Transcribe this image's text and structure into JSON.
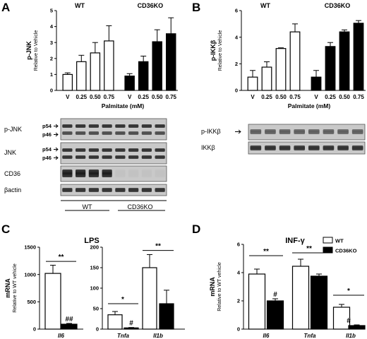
{
  "panels": {
    "A": {
      "letter": "A"
    },
    "B": {
      "letter": "B"
    },
    "C": {
      "letter": "C"
    },
    "D": {
      "letter": "D"
    }
  },
  "chart_data": [
    {
      "id": "A",
      "type": "bar",
      "groups": [
        "WT",
        "CD36KO"
      ],
      "categories": [
        "V",
        "0.25",
        "0.50",
        "0.75",
        "V",
        "0.25",
        "0.50",
        "0.75"
      ],
      "fill": [
        "white",
        "white",
        "white",
        "white",
        "black",
        "black",
        "black",
        "black"
      ],
      "values": [
        1.0,
        1.8,
        2.35,
        3.1,
        0.9,
        1.8,
        3.05,
        3.55
      ],
      "errors": [
        0.1,
        0.4,
        0.65,
        0.95,
        0.15,
        0.35,
        0.75,
        1.0
      ],
      "ylabel": "p-JNK",
      "ylabel_sub": "Relative to Vehicle",
      "xlabel": "Palmitate (mM)",
      "ylim": [
        0,
        5
      ],
      "yticks": [
        "0",
        "1",
        "2",
        "3",
        "4",
        "5"
      ]
    },
    {
      "id": "B",
      "type": "bar",
      "groups": [
        "WT",
        "CD36KO"
      ],
      "categories": [
        "V",
        "0.25",
        "0.50",
        "0.75",
        "V",
        "0.25",
        "0.50",
        "0.75"
      ],
      "fill": [
        "white",
        "white",
        "white",
        "white",
        "black",
        "black",
        "black",
        "black"
      ],
      "values": [
        1.0,
        1.75,
        3.15,
        4.4,
        1.0,
        3.3,
        4.4,
        5.05
      ],
      "errors": [
        0.5,
        0.4,
        0.05,
        0.6,
        0.5,
        0.3,
        0.15,
        0.2
      ],
      "ylabel": "p-IKKβ",
      "ylabel_sub": "Relative to Vehicle",
      "xlabel": "Palmitate (mM)",
      "ylim": [
        0,
        6
      ],
      "yticks": [
        "0",
        "2",
        "4",
        "6"
      ]
    },
    {
      "id": "C1",
      "type": "bar",
      "title": "LPS",
      "categories": [
        "Il6"
      ],
      "series": [
        {
          "name": "WT",
          "values": [
            1020
          ],
          "errors": [
            150
          ]
        },
        {
          "name": "CD36KO",
          "values": [
            90
          ],
          "errors": [
            15
          ]
        }
      ],
      "ylabel": "mRNA",
      "ylabel_sub": "Relative to WT vehicle",
      "ylim": [
        0,
        1500
      ],
      "yticks": [
        "0",
        "500",
        "1000",
        "1500"
      ],
      "annotations": [
        {
          "text": "**",
          "type": "bracket"
        },
        {
          "text": "##",
          "type": "bar"
        }
      ]
    },
    {
      "id": "C2",
      "type": "bar",
      "categories": [
        "Tnfa",
        "Il1b"
      ],
      "series": [
        {
          "name": "WT",
          "values": [
            35,
            150
          ],
          "errors": [
            8,
            32
          ]
        },
        {
          "name": "CD36KO",
          "values": [
            3,
            62
          ],
          "errors": [
            1,
            33
          ]
        }
      ],
      "ylim": [
        0,
        200
      ],
      "yticks": [
        "0",
        "50",
        "100",
        "150",
        "200"
      ],
      "annotations": [
        {
          "text": "*",
          "type": "bracket"
        },
        {
          "text": "#",
          "type": "bar"
        },
        {
          "text": "**",
          "type": "bracket"
        }
      ]
    },
    {
      "id": "D",
      "type": "bar",
      "title": "INF-γ",
      "categories": [
        "Il6",
        "Tnfa",
        "Il1b"
      ],
      "series": [
        {
          "name": "WT",
          "values": [
            3.9,
            4.45,
            1.55
          ],
          "errors": [
            0.35,
            0.5,
            0.2
          ]
        },
        {
          "name": "CD36KO",
          "values": [
            2.0,
            3.75,
            0.25
          ],
          "errors": [
            0.15,
            0.15,
            0.05
          ]
        }
      ],
      "ylabel": "mRNA",
      "ylabel_sub": "Relative to WT vehicle",
      "ylim": [
        0,
        6
      ],
      "yticks": [
        "0",
        "2",
        "4",
        "6"
      ],
      "legend": {
        "placement": "top-right",
        "entries": [
          "WT",
          "CD36KO"
        ]
      },
      "annotations": [
        {
          "text": "**",
          "type": "bracket"
        },
        {
          "text": "#",
          "type": "bar"
        },
        {
          "text": "**",
          "type": "bracket"
        },
        {
          "text": "*",
          "type": "bracket"
        },
        {
          "text": "#",
          "type": "bar"
        }
      ]
    }
  ],
  "blots": {
    "A": {
      "rows": [
        {
          "label": "p-JNK",
          "sub": [
            "p54",
            "p46"
          ]
        },
        {
          "label": "JNK",
          "sub": [
            "p54",
            "p46"
          ]
        },
        {
          "label": "CD36"
        },
        {
          "label": "βactin"
        }
      ],
      "groups": [
        "WT",
        "CD36KO"
      ]
    },
    "B": {
      "rows": [
        {
          "label": "p-IKKβ"
        },
        {
          "label": "IKKβ"
        }
      ]
    }
  }
}
